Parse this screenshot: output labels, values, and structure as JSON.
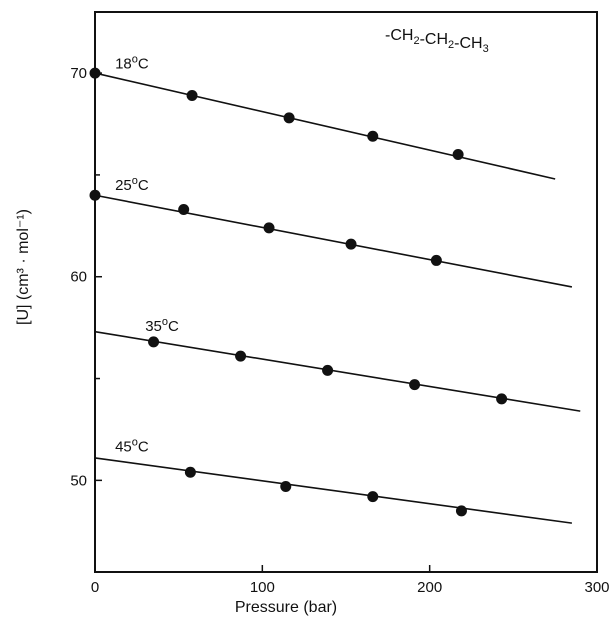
{
  "chart_data": {
    "type": "scatter",
    "xlabel": "Pressure (bar)",
    "ylabel": "[U] (cm³ · mol⁻¹)",
    "xlim": [
      0,
      300
    ],
    "ylim": [
      45.5,
      73
    ],
    "x_ticks": [
      0,
      100,
      200,
      300
    ],
    "y_ticks": [
      50,
      60,
      70
    ],
    "grid": false,
    "annotation": "-CH₂-CH₂-CH₃",
    "series": [
      {
        "name": "18°C",
        "label_base": "18",
        "label_sup": "o",
        "label_suffix": "C",
        "label_x": 12,
        "points": [
          [
            0,
            70.0
          ],
          [
            58,
            68.9
          ],
          [
            116,
            67.8
          ],
          [
            166,
            66.9
          ],
          [
            217,
            66.0
          ]
        ],
        "fit": [
          [
            0,
            70.0
          ],
          [
            275,
            64.8
          ]
        ]
      },
      {
        "name": "25°C",
        "label_base": "25",
        "label_sup": "o",
        "label_suffix": "C",
        "label_x": 12,
        "points": [
          [
            0,
            64.0
          ],
          [
            53,
            63.3
          ],
          [
            104,
            62.4
          ],
          [
            153,
            61.6
          ],
          [
            204,
            60.8
          ]
        ],
        "fit": [
          [
            0,
            64.0
          ],
          [
            285,
            59.5
          ]
        ]
      },
      {
        "name": "35°C",
        "label_base": "35",
        "label_sup": "o",
        "label_suffix": "C",
        "label_x": 30,
        "points": [
          [
            35,
            56.8
          ],
          [
            87,
            56.1
          ],
          [
            139,
            55.4
          ],
          [
            191,
            54.7
          ],
          [
            243,
            54.0
          ]
        ],
        "fit": [
          [
            0,
            57.3
          ],
          [
            290,
            53.4
          ]
        ]
      },
      {
        "name": "45°C",
        "label_base": "45",
        "label_sup": "o",
        "label_suffix": "C",
        "label_x": 12,
        "points": [
          [
            57,
            50.4
          ],
          [
            114,
            49.7
          ],
          [
            166,
            49.2
          ],
          [
            219,
            48.5
          ]
        ],
        "fit": [
          [
            0,
            51.1
          ],
          [
            285,
            47.9
          ]
        ]
      }
    ]
  }
}
